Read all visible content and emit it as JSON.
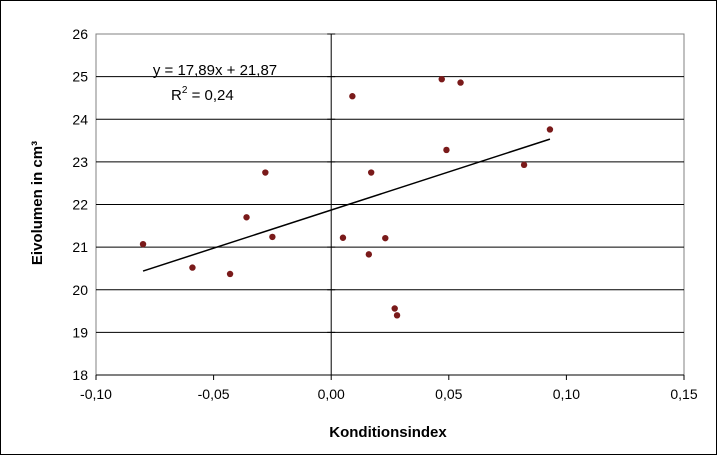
{
  "chart_data": {
    "type": "scatter",
    "xlabel": "Konditionsindex",
    "ylabel": "Eivolumen in cm³",
    "xlim": [
      -0.1,
      0.15
    ],
    "ylim": [
      18,
      26
    ],
    "x_ticks": [
      -0.1,
      -0.05,
      0.0,
      0.05,
      0.1,
      0.15
    ],
    "x_tick_labels": [
      "-0,10",
      "-0,05",
      "0,00",
      "0,05",
      "0,10",
      "0,15"
    ],
    "y_ticks": [
      18,
      19,
      20,
      21,
      22,
      23,
      24,
      25,
      26
    ],
    "y_tick_labels": [
      "18",
      "19",
      "20",
      "21",
      "22",
      "23",
      "24",
      "25",
      "26"
    ],
    "grid": "horizontal",
    "point_color": "#7a1a1a",
    "points": [
      {
        "x": -0.08,
        "y": 21.07
      },
      {
        "x": -0.059,
        "y": 20.52
      },
      {
        "x": -0.043,
        "y": 20.37
      },
      {
        "x": -0.036,
        "y": 21.7
      },
      {
        "x": -0.028,
        "y": 22.75
      },
      {
        "x": -0.025,
        "y": 21.24
      },
      {
        "x": 0.005,
        "y": 21.22
      },
      {
        "x": 0.009,
        "y": 24.54
      },
      {
        "x": 0.016,
        "y": 20.83
      },
      {
        "x": 0.017,
        "y": 22.75
      },
      {
        "x": 0.023,
        "y": 21.21
      },
      {
        "x": 0.027,
        "y": 19.56
      },
      {
        "x": 0.028,
        "y": 19.4
      },
      {
        "x": 0.047,
        "y": 24.94
      },
      {
        "x": 0.049,
        "y": 23.28
      },
      {
        "x": 0.055,
        "y": 24.86
      },
      {
        "x": 0.082,
        "y": 22.93
      },
      {
        "x": 0.093,
        "y": 23.76
      }
    ],
    "trendline": {
      "slope": 17.89,
      "intercept": 21.87,
      "x_start": -0.08,
      "x_end": 0.093
    },
    "equation_text": "y = 17,89x + 21,87",
    "r2_prefix": "R",
    "r2_exp": "2",
    "r2_suffix": " = 0,24"
  }
}
